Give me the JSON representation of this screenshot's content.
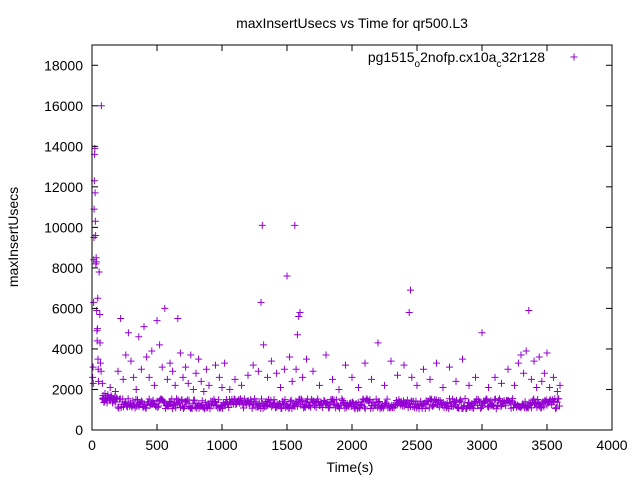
{
  "chart_data": {
    "type": "scatter",
    "title": "maxInsertUsecs vs Time for qr500.L3",
    "xlabel": "Time(s)",
    "ylabel": "maxInsertUsecs",
    "xlim": [
      0,
      4000
    ],
    "ylim": [
      0,
      19000
    ],
    "x_ticks": [
      0,
      500,
      1000,
      1500,
      2000,
      2500,
      3000,
      3500,
      4000
    ],
    "y_ticks": [
      0,
      2000,
      4000,
      6000,
      8000,
      10000,
      12000,
      14000,
      16000,
      18000
    ],
    "grid": false,
    "legend_position": "top-right",
    "legend": {
      "parts": [
        "pg1515",
        "o",
        "2nofp.cx10a",
        "c",
        "32r128"
      ]
    },
    "marker_color": "#9400d3",
    "series": [
      {
        "marker": "+",
        "points": [
          [
            5,
            2600
          ],
          [
            8,
            3100
          ],
          [
            10,
            2300
          ],
          [
            12,
            6300
          ],
          [
            14,
            8400
          ],
          [
            15,
            9500
          ],
          [
            16,
            10900
          ],
          [
            18,
            12300
          ],
          [
            20,
            13600
          ],
          [
            22,
            13900
          ],
          [
            24,
            11700
          ],
          [
            26,
            10300
          ],
          [
            28,
            9600
          ],
          [
            30,
            8200
          ],
          [
            32,
            8500
          ],
          [
            34,
            8300
          ],
          [
            36,
            5900
          ],
          [
            38,
            4900
          ],
          [
            40,
            4400
          ],
          [
            42,
            5000
          ],
          [
            44,
            6500
          ],
          [
            46,
            3500
          ],
          [
            48,
            3000
          ],
          [
            50,
            2400
          ],
          [
            55,
            7800
          ],
          [
            60,
            5700
          ],
          [
            62,
            4300
          ],
          [
            65,
            3300
          ],
          [
            70,
            2900
          ],
          [
            72,
            16000
          ],
          [
            80,
            2300
          ],
          [
            85,
            1700
          ],
          [
            90,
            1500
          ],
          [
            100,
            1800
          ],
          [
            120,
            1600
          ],
          [
            140,
            2100
          ],
          [
            160,
            1500
          ],
          [
            180,
            1900
          ],
          [
            200,
            2900
          ],
          [
            220,
            5500
          ],
          [
            240,
            2500
          ],
          [
            260,
            3700
          ],
          [
            280,
            4800
          ],
          [
            300,
            3400
          ],
          [
            320,
            2600
          ],
          [
            340,
            2000
          ],
          [
            360,
            4600
          ],
          [
            380,
            3000
          ],
          [
            400,
            5100
          ],
          [
            420,
            3600
          ],
          [
            440,
            2600
          ],
          [
            460,
            3900
          ],
          [
            480,
            2200
          ],
          [
            500,
            5400
          ],
          [
            520,
            4200
          ],
          [
            540,
            3100
          ],
          [
            560,
            6000
          ],
          [
            580,
            2500
          ],
          [
            600,
            3300
          ],
          [
            620,
            2900
          ],
          [
            640,
            2200
          ],
          [
            660,
            5500
          ],
          [
            680,
            3800
          ],
          [
            700,
            2600
          ],
          [
            720,
            3100
          ],
          [
            740,
            2300
          ],
          [
            760,
            3700
          ],
          [
            780,
            2000
          ],
          [
            800,
            2800
          ],
          [
            820,
            3500
          ],
          [
            840,
            2400
          ],
          [
            860,
            1900
          ],
          [
            880,
            3000
          ],
          [
            900,
            2200
          ],
          [
            950,
            3200
          ],
          [
            980,
            2600
          ],
          [
            1000,
            2100
          ],
          [
            1020,
            3300
          ],
          [
            1060,
            2000
          ],
          [
            1100,
            2500
          ],
          [
            1150,
            2200
          ],
          [
            1200,
            2700
          ],
          [
            1240,
            3200
          ],
          [
            1280,
            2900
          ],
          [
            1300,
            6300
          ],
          [
            1310,
            10100
          ],
          [
            1320,
            4200
          ],
          [
            1350,
            2600
          ],
          [
            1380,
            3400
          ],
          [
            1420,
            2800
          ],
          [
            1450,
            2100
          ],
          [
            1480,
            3000
          ],
          [
            1500,
            7600
          ],
          [
            1520,
            3600
          ],
          [
            1540,
            2400
          ],
          [
            1560,
            10100
          ],
          [
            1570,
            3000
          ],
          [
            1580,
            4700
          ],
          [
            1590,
            5600
          ],
          [
            1600,
            5800
          ],
          [
            1620,
            2600
          ],
          [
            1650,
            3500
          ],
          [
            1700,
            2900
          ],
          [
            1750,
            2200
          ],
          [
            1800,
            3700
          ],
          [
            1850,
            2500
          ],
          [
            1900,
            2000
          ],
          [
            1950,
            3200
          ],
          [
            2000,
            2600
          ],
          [
            2050,
            2100
          ],
          [
            2100,
            3300
          ],
          [
            2150,
            2500
          ],
          [
            2200,
            4300
          ],
          [
            2250,
            2200
          ],
          [
            2300,
            3400
          ],
          [
            2350,
            2700
          ],
          [
            2400,
            3200
          ],
          [
            2440,
            5800
          ],
          [
            2450,
            6900
          ],
          [
            2460,
            2600
          ],
          [
            2500,
            2200
          ],
          [
            2550,
            3000
          ],
          [
            2600,
            2500
          ],
          [
            2650,
            3300
          ],
          [
            2700,
            2100
          ],
          [
            2750,
            3100
          ],
          [
            2800,
            2400
          ],
          [
            2850,
            3500
          ],
          [
            2900,
            2200
          ],
          [
            2950,
            2600
          ],
          [
            3000,
            4800
          ],
          [
            3050,
            2100
          ],
          [
            3100,
            2600
          ],
          [
            3150,
            2300
          ],
          [
            3200,
            3000
          ],
          [
            3250,
            2200
          ],
          [
            3280,
            3300
          ],
          [
            3300,
            3700
          ],
          [
            3320,
            2800
          ],
          [
            3340,
            3900
          ],
          [
            3360,
            5900
          ],
          [
            3380,
            2500
          ],
          [
            3400,
            3400
          ],
          [
            3420,
            2100
          ],
          [
            3440,
            3600
          ],
          [
            3460,
            2400
          ],
          [
            3480,
            2800
          ],
          [
            3500,
            3800
          ],
          [
            3520,
            2100
          ],
          [
            3550,
            2600
          ],
          [
            3580,
            1900
          ],
          [
            3600,
            2200
          ]
        ]
      }
    ],
    "dense_band": {
      "x_from": 80,
      "x_to": 3600,
      "y_center": 1300,
      "y_spread": 250
    }
  }
}
